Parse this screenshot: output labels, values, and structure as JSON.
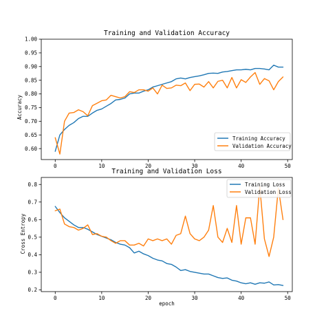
{
  "chart_data": [
    {
      "type": "line",
      "title": "Training and Validation Accuracy",
      "xlabel": "",
      "ylabel": "Accuracy",
      "xlim": [
        -3,
        51
      ],
      "ylim": [
        0.56,
        1.0
      ],
      "xticks": [
        0,
        10,
        20,
        30,
        40,
        50
      ],
      "yticks": [
        0.6,
        0.65,
        0.7,
        0.75,
        0.8,
        0.85,
        0.9,
        0.95,
        1.0
      ],
      "ytick_labels": [
        "0.60",
        "0.65",
        "0.70",
        "0.75",
        "0.80",
        "0.85",
        "0.90",
        "0.95",
        "1.00"
      ],
      "legend_position": "lower-right",
      "x": [
        0,
        1,
        2,
        3,
        4,
        5,
        6,
        7,
        8,
        9,
        10,
        11,
        12,
        13,
        14,
        15,
        16,
        17,
        18,
        19,
        20,
        21,
        22,
        23,
        24,
        25,
        26,
        27,
        28,
        29,
        30,
        31,
        32,
        33,
        34,
        35,
        36,
        37,
        38,
        39,
        40,
        41,
        42,
        43,
        44,
        45,
        46,
        47,
        48,
        49
      ],
      "series": [
        {
          "name": "Training Accuracy",
          "color": "#1f77b4",
          "values": [
            0.59,
            0.65,
            0.67,
            0.685,
            0.695,
            0.71,
            0.718,
            0.718,
            0.73,
            0.74,
            0.745,
            0.755,
            0.765,
            0.778,
            0.78,
            0.785,
            0.8,
            0.803,
            0.803,
            0.81,
            0.815,
            0.825,
            0.83,
            0.835,
            0.84,
            0.845,
            0.855,
            0.858,
            0.855,
            0.86,
            0.863,
            0.866,
            0.87,
            0.875,
            0.876,
            0.875,
            0.88,
            0.882,
            0.885,
            0.888,
            0.888,
            0.89,
            0.888,
            0.893,
            0.893,
            0.891,
            0.888,
            0.905,
            0.898,
            0.898
          ]
        },
        {
          "name": "Validation Accuracy",
          "color": "#ff7f0e",
          "values": [
            0.64,
            0.58,
            0.7,
            0.73,
            0.732,
            0.742,
            0.735,
            0.72,
            0.757,
            0.766,
            0.775,
            0.778,
            0.795,
            0.79,
            0.785,
            0.79,
            0.808,
            0.805,
            0.815,
            0.815,
            0.81,
            0.822,
            0.8,
            0.832,
            0.82,
            0.822,
            0.832,
            0.83,
            0.84,
            0.812,
            0.835,
            0.836,
            0.825,
            0.845,
            0.822,
            0.846,
            0.85,
            0.822,
            0.86,
            0.822,
            0.852,
            0.842,
            0.862,
            0.878,
            0.835,
            0.856,
            0.848,
            0.815,
            0.845,
            0.862
          ]
        }
      ]
    },
    {
      "type": "line",
      "title": "Training and Validation Loss",
      "xlabel": "epoch",
      "ylabel": "Cross Entropy",
      "xlim": [
        -3,
        51
      ],
      "ylim": [
        0.19,
        0.84
      ],
      "xticks": [
        0,
        10,
        20,
        30,
        40,
        50
      ],
      "yticks": [
        0.2,
        0.3,
        0.4,
        0.5,
        0.6,
        0.7,
        0.8
      ],
      "ytick_labels": [
        "0.2",
        "0.3",
        "0.4",
        "0.5",
        "0.6",
        "0.7",
        "0.8"
      ],
      "legend_position": "upper-right",
      "x": [
        0,
        1,
        2,
        3,
        4,
        5,
        6,
        7,
        8,
        9,
        10,
        11,
        12,
        13,
        14,
        15,
        16,
        17,
        18,
        19,
        20,
        21,
        22,
        23,
        24,
        25,
        26,
        27,
        28,
        29,
        30,
        31,
        32,
        33,
        34,
        35,
        36,
        37,
        38,
        39,
        40,
        41,
        42,
        43,
        44,
        45,
        46,
        47,
        48,
        49
      ],
      "series": [
        {
          "name": "Training Loss",
          "color": "#1f77b4",
          "values": [
            0.675,
            0.64,
            0.61,
            0.59,
            0.57,
            0.555,
            0.555,
            0.545,
            0.53,
            0.515,
            0.505,
            0.495,
            0.485,
            0.47,
            0.46,
            0.455,
            0.44,
            0.41,
            0.42,
            0.405,
            0.395,
            0.38,
            0.37,
            0.365,
            0.35,
            0.345,
            0.33,
            0.31,
            0.315,
            0.305,
            0.3,
            0.295,
            0.29,
            0.29,
            0.28,
            0.27,
            0.265,
            0.268,
            0.255,
            0.25,
            0.24,
            0.235,
            0.24,
            0.232,
            0.24,
            0.238,
            0.245,
            0.228,
            0.23,
            0.225
          ]
        },
        {
          "name": "Validation Loss",
          "color": "#ff7f0e",
          "values": [
            0.65,
            0.66,
            0.575,
            0.56,
            0.555,
            0.54,
            0.55,
            0.57,
            0.515,
            0.52,
            0.505,
            0.5,
            0.48,
            0.465,
            0.48,
            0.48,
            0.455,
            0.455,
            0.465,
            0.45,
            0.49,
            0.48,
            0.49,
            0.48,
            0.49,
            0.46,
            0.51,
            0.52,
            0.62,
            0.52,
            0.49,
            0.48,
            0.5,
            0.54,
            0.68,
            0.5,
            0.47,
            0.55,
            0.47,
            0.68,
            0.46,
            0.61,
            0.61,
            0.46,
            0.79,
            0.49,
            0.39,
            0.5,
            0.78,
            0.6
          ]
        }
      ]
    }
  ]
}
